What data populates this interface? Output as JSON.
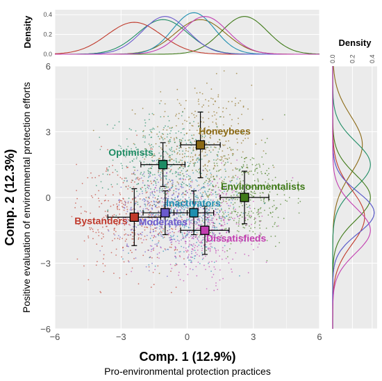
{
  "chart_data": {
    "type": "scatter",
    "xaxis": {
      "title": "Comp. 1 (12.9%)",
      "subtitle": "Pro-environmental protection practices",
      "range": [
        -6,
        6
      ],
      "ticks": [
        "-6",
        "-3",
        "0",
        "3",
        "6"
      ]
    },
    "yaxis": {
      "title": "Comp. 2 (12.3%)",
      "subtitle": "Positive evaluation of environmental protection efforts",
      "range": [
        -6,
        6
      ],
      "ticks": [
        "-6",
        "-3",
        "0",
        "3",
        "6"
      ]
    },
    "density_label": "Density",
    "top_density_ticks": [
      "0.0",
      "0.2",
      "0.4"
    ],
    "right_density_ticks": [
      "0.0",
      "0.2",
      "0.4"
    ],
    "groups": [
      {
        "name": "Honeybees",
        "color": "#8B6914",
        "x": 0.6,
        "y": 2.4,
        "xerr": 0.9,
        "yerr": 1.5,
        "sx": 1.2,
        "sy": 1.4
      },
      {
        "name": "Optimists",
        "color": "#1E8C64",
        "x": -1.1,
        "y": 1.5,
        "xerr": 1.0,
        "yerr": 1.0,
        "sx": 1.2,
        "sy": 1.1
      },
      {
        "name": "Environmentalists",
        "color": "#3F7A18",
        "x": 2.6,
        "y": 0.0,
        "xerr": 1.1,
        "yerr": 1.2,
        "sx": 1.1,
        "sy": 1.1
      },
      {
        "name": "Inactivators",
        "color": "#1F8FB0",
        "x": 0.3,
        "y": -0.7,
        "xerr": 0.9,
        "yerr": 1.0,
        "sx": 1.0,
        "sy": 1.0
      },
      {
        "name": "Bystanders",
        "color": "#C0392B",
        "x": -2.4,
        "y": -0.9,
        "xerr": 1.2,
        "yerr": 1.3,
        "sx": 1.3,
        "sy": 1.3
      },
      {
        "name": "Moderates",
        "color": "#6A5ACD",
        "x": -1.0,
        "y": -0.7,
        "xerr": 1.0,
        "yerr": 1.0,
        "sx": 1.1,
        "sy": 1.0
      },
      {
        "name": "Dissatisfieds",
        "color": "#C23DB0",
        "x": 0.8,
        "y": -1.5,
        "xerr": 1.1,
        "yerr": 1.1,
        "sx": 1.1,
        "sy": 1.1
      }
    ],
    "grid": true
  }
}
